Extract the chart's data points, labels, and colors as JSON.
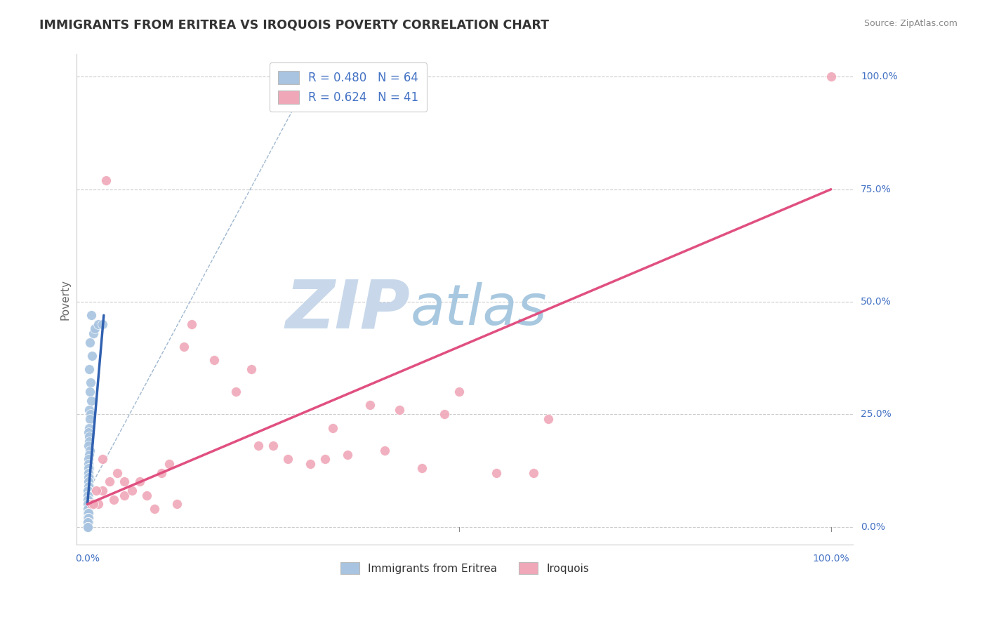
{
  "title": "IMMIGRANTS FROM ERITREA VS IROQUOIS POVERTY CORRELATION CHART",
  "source": "Source: ZipAtlas.com",
  "ylabel": "Poverty",
  "ytick_labels": [
    "0.0%",
    "25.0%",
    "50.0%",
    "75.0%",
    "100.0%"
  ],
  "ytick_values": [
    0,
    25,
    50,
    75,
    100
  ],
  "xtick_labels": [
    "0.0%",
    "100.0%"
  ],
  "blue_R": 0.48,
  "blue_N": 64,
  "pink_R": 0.624,
  "pink_N": 41,
  "blue_color": "#a8c4e0",
  "pink_color": "#f0a8b8",
  "blue_line_color": "#3060b0",
  "pink_line_color": "#e05080",
  "dashed_line_color": "#a0b8d0",
  "background_color": "#ffffff",
  "watermark_zip_color": "#c8d8ea",
  "watermark_atlas_color": "#a8c8e0",
  "blue_scatter_x": [
    0.5,
    0.8,
    1.0,
    1.5,
    2.0,
    0.3,
    0.6,
    0.2,
    0.4,
    0.3,
    0.5,
    0.2,
    0.4,
    0.3,
    0.2,
    0.15,
    0.25,
    0.2,
    0.1,
    0.3,
    0.2,
    0.15,
    0.1,
    0.2,
    0.1,
    0.15,
    0.1,
    0.2,
    0.1,
    0.15,
    0.1,
    0.2,
    0.1,
    0.15,
    0.1,
    0.05,
    0.1,
    0.05,
    0.1,
    0.05,
    0.1,
    0.05,
    0.1,
    0.05,
    0.1,
    0.05,
    0.1,
    0.05,
    0.1,
    0.05,
    0.1,
    0.05,
    0.1,
    0.05,
    0.05,
    0.05,
    0.05,
    0.05,
    0.05,
    0.05,
    0.05,
    0.05,
    0.05,
    0.05
  ],
  "blue_scatter_y": [
    47,
    43,
    44,
    45,
    45,
    41,
    38,
    35,
    32,
    30,
    28,
    26,
    25,
    24,
    22,
    21,
    20,
    19,
    18,
    17,
    16,
    15,
    14,
    13,
    13,
    12,
    12,
    11,
    11,
    10,
    10,
    9,
    9,
    8,
    8,
    8,
    7,
    7,
    6,
    6,
    5,
    5,
    4,
    4,
    3,
    3,
    3,
    2,
    2,
    2,
    2,
    1,
    1,
    1,
    1,
    0,
    0,
    0,
    0,
    0,
    0,
    0,
    0,
    0
  ],
  "pink_scatter_x": [
    2.5,
    13,
    14,
    17,
    20,
    22,
    23,
    25,
    27,
    30,
    32,
    33,
    35,
    38,
    40,
    42,
    45,
    48,
    50,
    55,
    60,
    62,
    0.5,
    1.5,
    2.0,
    3.0,
    4.0,
    5.0,
    6.0,
    7.0,
    8.0,
    9.0,
    10.0,
    11.0,
    12.0,
    0.8,
    1.2,
    2.0,
    3.5,
    5.0,
    100.0
  ],
  "pink_scatter_y": [
    77,
    40,
    45,
    37,
    30,
    35,
    18,
    18,
    15,
    14,
    15,
    22,
    16,
    27,
    17,
    26,
    13,
    25,
    30,
    12,
    12,
    24,
    5,
    5,
    8,
    10,
    12,
    7,
    8,
    10,
    7,
    4,
    12,
    14,
    5,
    5,
    8,
    15,
    6,
    10,
    100
  ],
  "blue_trend_x": [
    0.0,
    2.2
  ],
  "blue_trend_y": [
    5,
    47
  ],
  "pink_trend_x": [
    0.0,
    100.0
  ],
  "pink_trend_y": [
    5,
    75
  ],
  "dashed_line_x": [
    0.8,
    30
  ],
  "dashed_line_y": [
    10,
    100
  ],
  "xmin": 0,
  "xmax": 100,
  "ymin": 0,
  "ymax": 100
}
